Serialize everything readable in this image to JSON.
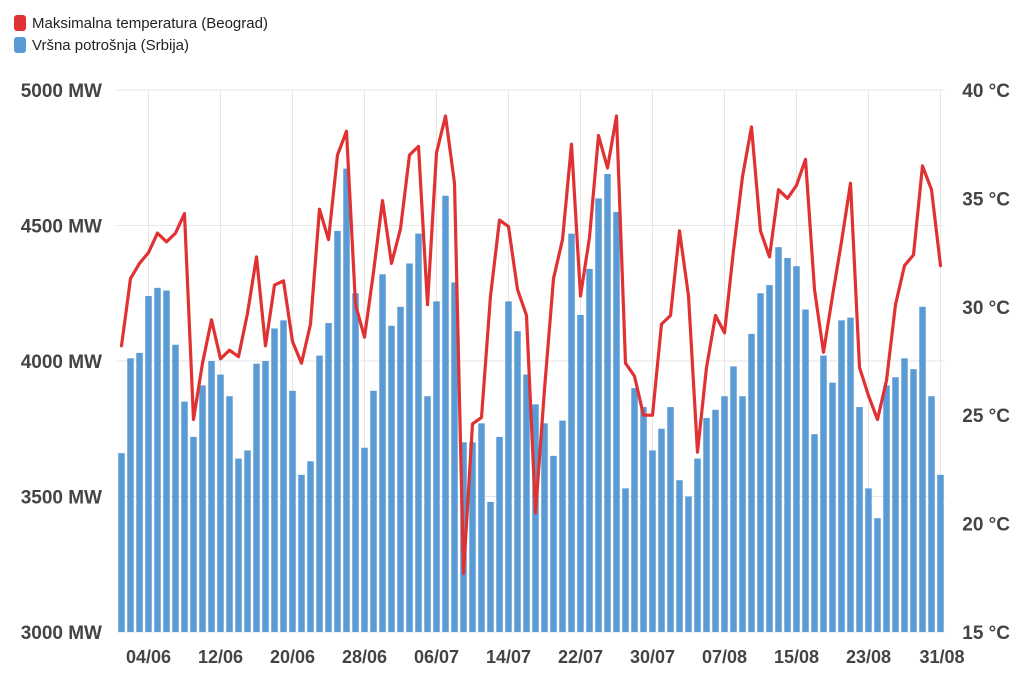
{
  "legend": {
    "temp_label": "Maksimalna temperatura (Beograd)",
    "load_label": "Vršna potrošnja (Srbija)"
  },
  "colors": {
    "temp": "#e03232",
    "load": "#5b9bd5",
    "grid": "#e6e6e6"
  },
  "chart_data": {
    "type": "bar",
    "title": "",
    "xlabel": "",
    "ylabel": "",
    "categories": [
      "01/06",
      "02/06",
      "03/06",
      "04/06",
      "05/06",
      "06/06",
      "07/06",
      "08/06",
      "09/06",
      "10/06",
      "11/06",
      "12/06",
      "13/06",
      "14/06",
      "15/06",
      "16/06",
      "17/06",
      "18/06",
      "19/06",
      "20/06",
      "21/06",
      "22/06",
      "23/06",
      "24/06",
      "25/06",
      "26/06",
      "27/06",
      "28/06",
      "29/06",
      "30/06",
      "01/07",
      "02/07",
      "03/07",
      "04/07",
      "05/07",
      "06/07",
      "07/07",
      "08/07",
      "09/07",
      "10/07",
      "11/07",
      "12/07",
      "13/07",
      "14/07",
      "15/07",
      "16/07",
      "17/07",
      "18/07",
      "19/07",
      "20/07",
      "21/07",
      "22/07",
      "23/07",
      "24/07",
      "25/07",
      "26/07",
      "27/07",
      "28/07",
      "29/07",
      "30/07",
      "31/07",
      "01/08",
      "02/08",
      "03/08",
      "04/08",
      "05/08",
      "06/08",
      "07/08",
      "08/08",
      "09/08",
      "10/08",
      "11/08",
      "12/08",
      "13/08",
      "14/08",
      "15/08",
      "16/08",
      "17/08",
      "18/08",
      "19/08",
      "20/08",
      "21/08",
      "22/08",
      "23/08",
      "24/08",
      "25/08",
      "26/08",
      "27/08",
      "28/08",
      "29/08",
      "30/08",
      "31/08"
    ],
    "x_tick_labels": [
      "04/06",
      "12/06",
      "20/06",
      "28/06",
      "06/07",
      "14/07",
      "22/07",
      "30/07",
      "07/08",
      "15/08",
      "23/08",
      "31/08"
    ],
    "y_left": {
      "ticks": [
        "3000 MW",
        "3500 MW",
        "4000 MW",
        "4500 MW",
        "5000 MW"
      ],
      "range": [
        3000,
        5000
      ]
    },
    "y_right": {
      "ticks": [
        "15 °C",
        "20 °C",
        "25 °C",
        "30 °C",
        "35 °C",
        "40 °C"
      ],
      "range": [
        15,
        40
      ]
    },
    "grid": true,
    "legend_position": "top-left",
    "series": [
      {
        "name": "Vršna potrošnja (Srbija)",
        "type": "bar",
        "axis": "left",
        "values": [
          3660,
          4010,
          4030,
          4240,
          4270,
          4260,
          4060,
          3850,
          3720,
          3910,
          4000,
          3950,
          3870,
          3640,
          3670,
          3990,
          4000,
          4120,
          4150,
          3890,
          3580,
          3630,
          4020,
          4140,
          4480,
          4710,
          4250,
          3680,
          3890,
          4320,
          4130,
          4200,
          4360,
          4470,
          3870,
          4220,
          4610,
          4290,
          3700,
          3700,
          3770,
          3480,
          3720,
          4220,
          4110,
          3950,
          3840,
          3770,
          3650,
          3780,
          4470,
          4170,
          4340,
          4600,
          4690,
          4550,
          3530,
          3900,
          3830,
          3670,
          3750,
          3830,
          3560,
          3500,
          3640,
          3790,
          3820,
          3870,
          3980,
          3870,
          4100,
          4250,
          4280,
          4420,
          4380,
          4350,
          4190,
          3730,
          4020,
          3920,
          4150,
          4160,
          3830,
          3530,
          3420,
          3910,
          3940,
          4010,
          3970,
          4200,
          3870,
          3580
        ]
      },
      {
        "name": "Maksimalna temperatura (Beograd)",
        "type": "line",
        "axis": "right",
        "values": [
          28.2,
          31.3,
          32,
          32.5,
          33.4,
          33,
          33.4,
          34.3,
          24.8,
          27.4,
          29.4,
          27.6,
          28,
          27.7,
          29.7,
          32.3,
          28.2,
          31,
          31.2,
          28.4,
          27.4,
          29.2,
          34.5,
          33.1,
          37,
          38.1,
          30.1,
          28.6,
          31.6,
          34.9,
          32,
          33.6,
          37,
          37.4,
          30.1,
          37.1,
          38.8,
          35.7,
          17.7,
          24.6,
          24.9,
          30.5,
          34,
          33.7,
          30.8,
          29.6,
          20.5,
          26.2,
          31.3,
          33.1,
          37.5,
          30.5,
          33.2,
          37.9,
          36.4,
          38.8,
          27.4,
          26.8,
          25,
          25,
          29.2,
          29.6,
          33.5,
          30.5,
          23.3,
          27.2,
          29.6,
          28.8,
          32.6,
          36,
          38.3,
          33.5,
          32.3,
          35.4,
          35,
          35.6,
          36.8,
          30.8,
          27.9,
          30.5,
          33,
          35.7,
          27.2,
          25.9,
          24.8,
          26.6,
          30.1,
          31.9,
          32.4,
          36.5,
          35.4,
          31.9
        ]
      }
    ]
  }
}
